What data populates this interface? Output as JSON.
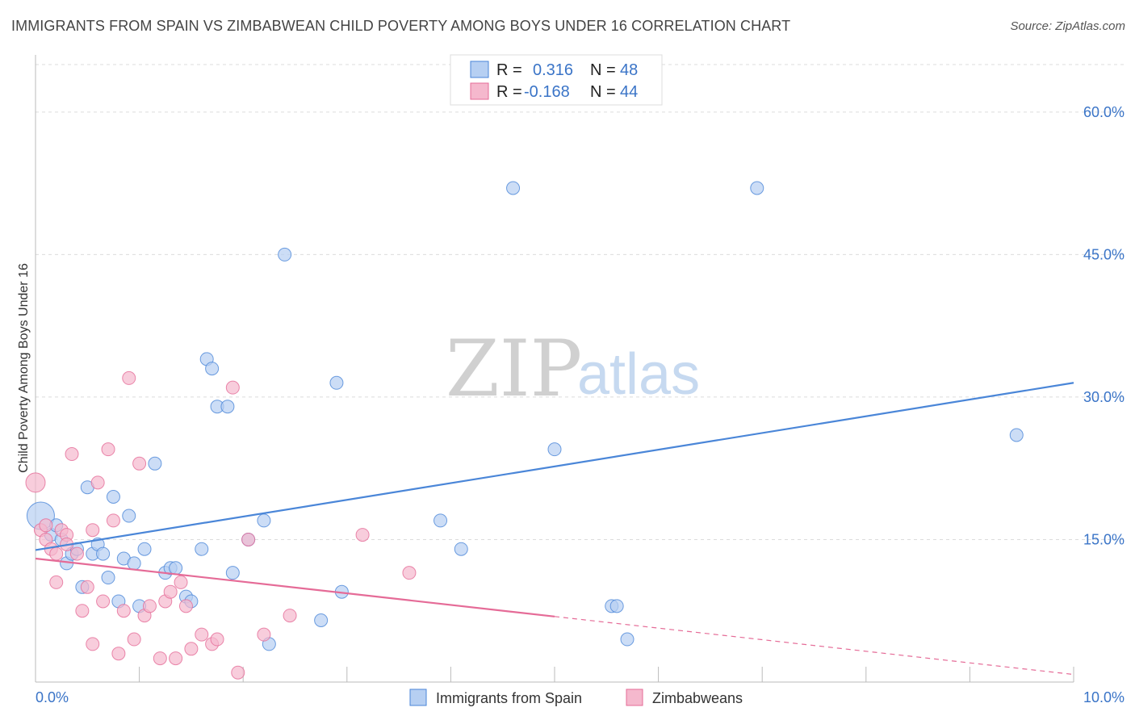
{
  "header": {
    "title": "IMMIGRANTS FROM SPAIN VS ZIMBABWEAN CHILD POVERTY AMONG BOYS UNDER 16 CORRELATION CHART",
    "source": "Source: ZipAtlas.com"
  },
  "watermark": {
    "zip": "ZIP",
    "atlas": "atlas"
  },
  "legend": {
    "r_label": "R =",
    "n_label": "N =",
    "series": [
      {
        "name": "Immigrants from Spain",
        "r": "0.316",
        "n": "48"
      },
      {
        "name": "Zimbabweans",
        "r": "-0.168",
        "n": "44"
      }
    ]
  },
  "chart_data": {
    "type": "scatter",
    "title": "IMMIGRANTS FROM SPAIN VS ZIMBABWEAN CHILD POVERTY AMONG BOYS UNDER 16 CORRELATION CHART",
    "xlabel": "",
    "ylabel": "Child Poverty Among Boys Under 16",
    "xlim": [
      0,
      10
    ],
    "ylim": [
      0,
      65
    ],
    "x_ticks": [
      0,
      1,
      2,
      3,
      4,
      5,
      6,
      7,
      8,
      9,
      10
    ],
    "x_tick_labels": [
      "0.0%",
      "",
      "",
      "",
      "",
      "",
      "",
      "",
      "",
      "",
      "10.0%"
    ],
    "y_ticks": [
      15,
      30,
      45,
      60
    ],
    "y_tick_labels": [
      "15.0%",
      "30.0%",
      "45.0%",
      "60.0%"
    ],
    "grid": true,
    "legend_position": "top-center",
    "colors": {
      "blue": "#4a86d8",
      "blue_fill": "#b6cff2",
      "pink": "#e56b97",
      "pink_fill": "#f5b8cd"
    },
    "series": [
      {
        "name": "Immigrants from Spain",
        "color": "#4a86d8",
        "points": [
          [
            0.05,
            17.5
          ],
          [
            0.15,
            15.5
          ],
          [
            0.2,
            16.5
          ],
          [
            0.3,
            12.5
          ],
          [
            0.35,
            13.5
          ],
          [
            0.4,
            14.0
          ],
          [
            0.45,
            10.0
          ],
          [
            0.5,
            20.5
          ],
          [
            0.55,
            13.5
          ],
          [
            0.6,
            14.5
          ],
          [
            0.65,
            13.5
          ],
          [
            0.7,
            11.0
          ],
          [
            0.75,
            19.5
          ],
          [
            0.8,
            8.5
          ],
          [
            0.85,
            13.0
          ],
          [
            0.9,
            17.5
          ],
          [
            0.95,
            12.5
          ],
          [
            1.0,
            8.0
          ],
          [
            1.05,
            14.0
          ],
          [
            1.15,
            23.0
          ],
          [
            1.25,
            11.5
          ],
          [
            1.3,
            12.0
          ],
          [
            1.35,
            12.0
          ],
          [
            1.45,
            9.0
          ],
          [
            1.5,
            8.5
          ],
          [
            1.6,
            14.0
          ],
          [
            1.65,
            34.0
          ],
          [
            1.7,
            33.0
          ],
          [
            1.75,
            29.0
          ],
          [
            1.85,
            29.0
          ],
          [
            1.9,
            11.5
          ],
          [
            2.05,
            15.0
          ],
          [
            2.2,
            17.0
          ],
          [
            2.25,
            4.0
          ],
          [
            2.4,
            45.0
          ],
          [
            2.75,
            6.5
          ],
          [
            2.9,
            31.5
          ],
          [
            2.95,
            9.5
          ],
          [
            3.9,
            17.0
          ],
          [
            4.1,
            14.0
          ],
          [
            4.6,
            52.0
          ],
          [
            5.0,
            24.5
          ],
          [
            5.55,
            8.0
          ],
          [
            5.6,
            8.0
          ],
          [
            5.7,
            4.5
          ],
          [
            6.95,
            52.0
          ],
          [
            9.45,
            26.0
          ],
          [
            0.25,
            15.0
          ]
        ],
        "trend": {
          "x": [
            0,
            10
          ],
          "y": [
            13.9,
            31.5
          ]
        }
      },
      {
        "name": "Zimbabweans",
        "color": "#e56b97",
        "points": [
          [
            0.0,
            21.0
          ],
          [
            0.05,
            16.0
          ],
          [
            0.1,
            15.0
          ],
          [
            0.15,
            14.0
          ],
          [
            0.2,
            10.5
          ],
          [
            0.25,
            16.0
          ],
          [
            0.3,
            15.5
          ],
          [
            0.35,
            24.0
          ],
          [
            0.4,
            13.5
          ],
          [
            0.45,
            7.5
          ],
          [
            0.5,
            10.0
          ],
          [
            0.55,
            4.0
          ],
          [
            0.6,
            21.0
          ],
          [
            0.65,
            8.5
          ],
          [
            0.7,
            24.5
          ],
          [
            0.75,
            17.0
          ],
          [
            0.8,
            3.0
          ],
          [
            0.85,
            7.5
          ],
          [
            0.9,
            32.0
          ],
          [
            0.95,
            4.5
          ],
          [
            1.0,
            23.0
          ],
          [
            1.05,
            7.0
          ],
          [
            1.1,
            8.0
          ],
          [
            1.2,
            2.5
          ],
          [
            1.25,
            8.5
          ],
          [
            1.3,
            9.5
          ],
          [
            1.35,
            2.5
          ],
          [
            1.4,
            10.5
          ],
          [
            1.45,
            8.0
          ],
          [
            1.5,
            3.5
          ],
          [
            1.6,
            5.0
          ],
          [
            1.7,
            4.0
          ],
          [
            1.75,
            4.5
          ],
          [
            1.9,
            31.0
          ],
          [
            1.95,
            1.0
          ],
          [
            2.05,
            15.0
          ],
          [
            2.2,
            5.0
          ],
          [
            2.45,
            7.0
          ],
          [
            3.15,
            15.5
          ],
          [
            3.6,
            11.5
          ],
          [
            0.55,
            16.0
          ],
          [
            0.2,
            13.5
          ],
          [
            0.1,
            16.5
          ],
          [
            0.3,
            14.5
          ]
        ],
        "trend": {
          "x": [
            0,
            5
          ],
          "y": [
            13.0,
            6.9
          ]
        },
        "trend_dashed": {
          "x": [
            5,
            10
          ],
          "y": [
            6.9,
            0.8
          ]
        }
      }
    ]
  }
}
